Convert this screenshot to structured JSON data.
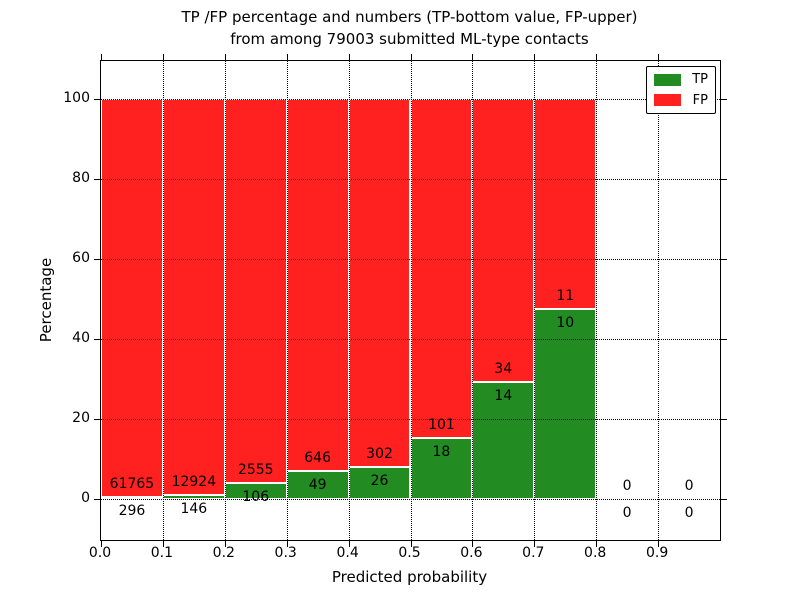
{
  "figure": {
    "background": "#ffffff"
  },
  "chart_data": {
    "type": "bar",
    "stacked": true,
    "title_line1": "TP /FP percentage and numbers (TP-bottom value, FP-upper)",
    "title_line2": "from among 79003 submitted ML-type contacts",
    "xlabel": "Predicted probability",
    "ylabel": "Percentage",
    "total_contacts": 79003,
    "xlim": [
      0.0,
      1.0
    ],
    "ylim": [
      -10.25,
      109.75
    ],
    "grid": "dotted",
    "legend_position": "upper right",
    "x_ticks": [
      {
        "label": "0.0",
        "value": 0.0
      },
      {
        "label": "0.1",
        "value": 0.1
      },
      {
        "label": "0.2",
        "value": 0.2
      },
      {
        "label": "0.3",
        "value": 0.3
      },
      {
        "label": "0.4",
        "value": 0.4
      },
      {
        "label": "0.5",
        "value": 0.5
      },
      {
        "label": "0.6",
        "value": 0.6
      },
      {
        "label": "0.7",
        "value": 0.7
      },
      {
        "label": "0.8",
        "value": 0.8
      },
      {
        "label": "0.9",
        "value": 0.9
      }
    ],
    "y_ticks": [
      {
        "label": "0",
        "value": 0
      },
      {
        "label": "20",
        "value": 20
      },
      {
        "label": "40",
        "value": 40
      },
      {
        "label": "60",
        "value": 60
      },
      {
        "label": "80",
        "value": 80
      },
      {
        "label": "100",
        "value": 100
      }
    ],
    "bins": [
      {
        "range": [
          0.0,
          0.1
        ],
        "tp": 296,
        "fp": 61765
      },
      {
        "range": [
          0.1,
          0.2
        ],
        "tp": 146,
        "fp": 12924
      },
      {
        "range": [
          0.2,
          0.3
        ],
        "tp": 106,
        "fp": 2555
      },
      {
        "range": [
          0.3,
          0.4
        ],
        "tp": 49,
        "fp": 646
      },
      {
        "range": [
          0.4,
          0.5
        ],
        "tp": 26,
        "fp": 302
      },
      {
        "range": [
          0.5,
          0.6
        ],
        "tp": 18,
        "fp": 101
      },
      {
        "range": [
          0.6,
          0.7
        ],
        "tp": 14,
        "fp": 34
      },
      {
        "range": [
          0.7,
          0.8
        ],
        "tp": 10,
        "fp": 11
      },
      {
        "range": [
          0.8,
          0.9
        ],
        "tp": 0,
        "fp": 0
      },
      {
        "range": [
          0.9,
          1.0
        ],
        "tp": 0,
        "fp": 0
      }
    ],
    "legend": [
      {
        "label": "TP",
        "color": "#228b22"
      },
      {
        "label": "FP",
        "color": "#ff2020"
      }
    ],
    "colors": {
      "tp": "#228b22",
      "fp": "#ff2020",
      "grid": "#000000",
      "bar_edge": "#ffffff",
      "axis": "#000000"
    }
  }
}
